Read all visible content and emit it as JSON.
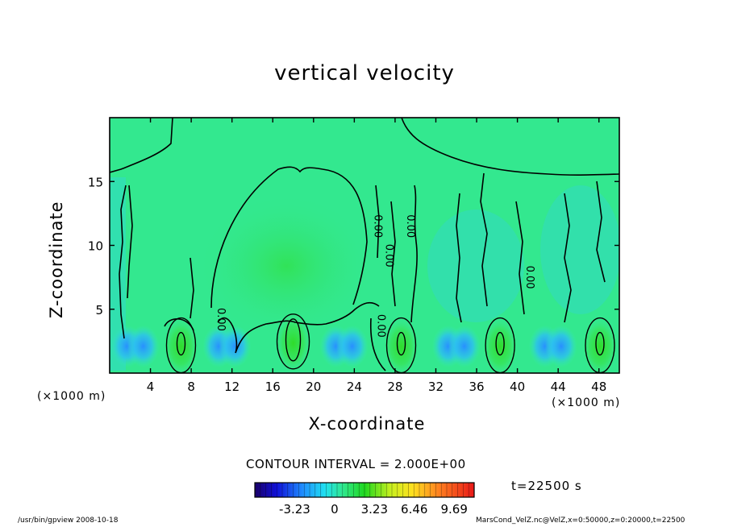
{
  "chart_data": {
    "type": "heatmap",
    "title": "vertical velocity",
    "xlabel": "X-coordinate",
    "ylabel": "Z-coordinate",
    "x_unit_label": "(×1000 m)",
    "xlim": [
      0,
      50
    ],
    "ylim": [
      0,
      20
    ],
    "x_ticks": [
      4,
      8,
      12,
      16,
      20,
      24,
      28,
      32,
      36,
      40,
      44,
      48
    ],
    "y_ticks": [
      5,
      10,
      15
    ],
    "contour_interval_text": "CONTOUR INTERVAL = 2.000E+00",
    "contour_labels": [
      "0.00",
      "0.00",
      "0.00",
      "0.00",
      "0.00",
      "0.00"
    ],
    "colorbar": {
      "ticks": [
        "-3.23",
        "0",
        "3.23",
        "6.46",
        "9.69"
      ],
      "tick_values": [
        -3.23,
        0,
        3.23,
        6.46,
        9.69
      ],
      "range": [
        -6.46,
        11.31
      ]
    },
    "updrafts": [
      {
        "x": 7,
        "z": 2.3
      },
      {
        "x": 18,
        "z": 2.6
      },
      {
        "x": 28.6,
        "z": 2.3
      },
      {
        "x": 38.3,
        "z": 2.3
      },
      {
        "x": 48.1,
        "z": 2.3
      }
    ],
    "time_label": "t=22500 s"
  },
  "footer": {
    "left": "/usr/bin/gpview   2008-10-18",
    "right": "MarsCond_VelZ.nc@VelZ,x=0:50000,z=0:20000,t=22500"
  },
  "colors": {
    "background_field": "#33e88f",
    "updraft": "#22dd22",
    "downdraft": "#29a0ff"
  }
}
